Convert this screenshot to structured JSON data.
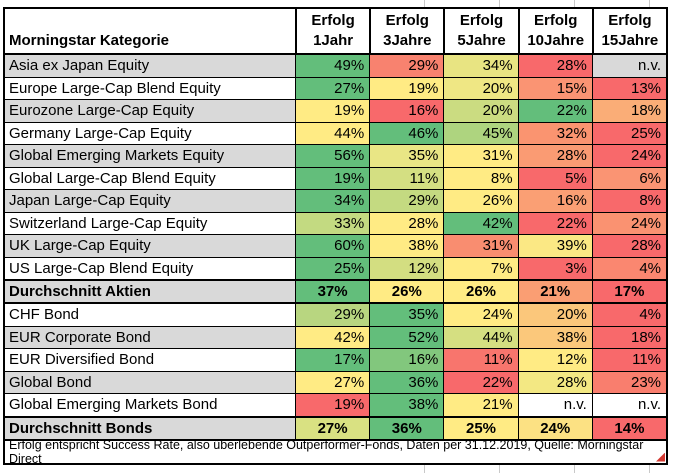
{
  "chart_data": {
    "type": "table",
    "corner_header": "Morningstar Kategorie",
    "columns": [
      {
        "line1": "Erfolg",
        "line2": "1Jahr"
      },
      {
        "line1": "Erfolg",
        "line2": "3Jahre"
      },
      {
        "line1": "Erfolg",
        "line2": "5Jahre"
      },
      {
        "line1": "Erfolg",
        "line2": "10Jahre"
      },
      {
        "line1": "Erfolg",
        "line2": "15Jahre"
      }
    ],
    "rows": [
      {
        "category": "Asia ex Japan Equity",
        "bold": false,
        "row_bg": "#D9D9D9",
        "values": [
          49,
          29,
          34,
          28,
          null
        ],
        "display": [
          "49%",
          "29%",
          "34%",
          "28%",
          "n.v."
        ],
        "cell_colors": [
          "#63BE7B",
          "#F8826F",
          "#E8E482",
          "#F8696B",
          "#D9D9D9"
        ]
      },
      {
        "category": "Europe Large-Cap Blend Equity",
        "bold": false,
        "row_bg": "#FFFFFF",
        "values": [
          27,
          19,
          20,
          15,
          13
        ],
        "display": [
          "27%",
          "19%",
          "20%",
          "15%",
          "13%"
        ],
        "cell_colors": [
          "#63BE7B",
          "#FFEB84",
          "#EFE784",
          "#FA9473",
          "#F8696B"
        ]
      },
      {
        "category": "Eurozone Large-Cap Equity",
        "bold": false,
        "row_bg": "#D9D9D9",
        "values": [
          19,
          16,
          20,
          22,
          18
        ],
        "display": [
          "19%",
          "16%",
          "20%",
          "22%",
          "18%"
        ],
        "cell_colors": [
          "#FFEB84",
          "#F8696B",
          "#CBDC81",
          "#63BE7B",
          "#FAAD77"
        ]
      },
      {
        "category": "Germany Large-Cap Equity",
        "bold": false,
        "row_bg": "#FFFFFF",
        "values": [
          44,
          46,
          45,
          32,
          25
        ],
        "display": [
          "44%",
          "46%",
          "45%",
          "32%",
          "25%"
        ],
        "cell_colors": [
          "#FFEB84",
          "#63BE7B",
          "#AED47F",
          "#FA9470",
          "#F8696B"
        ]
      },
      {
        "category": "Global Emerging Markets Equity",
        "bold": false,
        "row_bg": "#D9D9D9",
        "values": [
          56,
          35,
          31,
          28,
          24
        ],
        "display": [
          "56%",
          "35%",
          "31%",
          "28%",
          "24%"
        ],
        "cell_colors": [
          "#63BE7B",
          "#E9E685",
          "#FFEB84",
          "#FA9B73",
          "#F8696B"
        ]
      },
      {
        "category": "Global Large-Cap Blend Equity",
        "bold": false,
        "row_bg": "#FFFFFF",
        "values": [
          19,
          11,
          8,
          5,
          6
        ],
        "display": [
          "19%",
          "11%",
          "8%",
          "5%",
          "6%"
        ],
        "cell_colors": [
          "#63BE7B",
          "#D4DF82",
          "#FFEB84",
          "#F8696B",
          "#FA9473"
        ]
      },
      {
        "category": "Japan Large-Cap Equity",
        "bold": false,
        "row_bg": "#D9D9D9",
        "values": [
          34,
          29,
          26,
          16,
          8
        ],
        "display": [
          "34%",
          "29%",
          "26%",
          "16%",
          "8%"
        ],
        "cell_colors": [
          "#63BE7B",
          "#C4DA81",
          "#FFEB84",
          "#FA9F74",
          "#F8696B"
        ]
      },
      {
        "category": "Switzerland Large-Cap Equity",
        "bold": false,
        "row_bg": "#FFFFFF",
        "values": [
          33,
          28,
          42,
          22,
          24
        ],
        "display": [
          "33%",
          "28%",
          "42%",
          "22%",
          "24%"
        ],
        "cell_colors": [
          "#C3DA81",
          "#FFEB84",
          "#63BE7B",
          "#F8696B",
          "#FA9271"
        ]
      },
      {
        "category": "UK Large-Cap Equity",
        "bold": false,
        "row_bg": "#D9D9D9",
        "values": [
          60,
          38,
          31,
          39,
          28
        ],
        "display": [
          "60%",
          "38%",
          "31%",
          "39%",
          "28%"
        ],
        "cell_colors": [
          "#63BE7B",
          "#FFEB84",
          "#F98D70",
          "#FBE884",
          "#F8696B"
        ]
      },
      {
        "category": "US Large-Cap Blend Equity",
        "bold": false,
        "row_bg": "#FFFFFF",
        "values": [
          25,
          12,
          7,
          3,
          4
        ],
        "display": [
          "25%",
          "12%",
          "7%",
          "3%",
          "4%"
        ],
        "cell_colors": [
          "#63BE7B",
          "#D3DE81",
          "#FFEB84",
          "#F8696B",
          "#FA8770"
        ]
      },
      {
        "category": "Durchschnitt Aktien",
        "bold": true,
        "row_bg": "#D9D9D9",
        "values": [
          37,
          26,
          26,
          21,
          17
        ],
        "display": [
          "37%",
          "26%",
          "26%",
          "21%",
          "17%"
        ],
        "cell_colors": [
          "#63BE7B",
          "#FFEB84",
          "#FFEB84",
          "#FA9E73",
          "#F8696B"
        ]
      },
      {
        "category": "CHF Bond",
        "bold": false,
        "row_bg": "#FFFFFF",
        "values": [
          29,
          35,
          24,
          20,
          4
        ],
        "display": [
          "29%",
          "35%",
          "24%",
          "20%",
          "4%"
        ],
        "cell_colors": [
          "#B8D680",
          "#63BE7B",
          "#FFEB84",
          "#FBC77B",
          "#F8696B"
        ]
      },
      {
        "category": "EUR Corporate Bond",
        "bold": false,
        "row_bg": "#D9D9D9",
        "values": [
          42,
          52,
          44,
          38,
          18
        ],
        "display": [
          "42%",
          "52%",
          "44%",
          "38%",
          "18%"
        ],
        "cell_colors": [
          "#FFEB84",
          "#63BE7B",
          "#D5DF81",
          "#FBC87B",
          "#F8696B"
        ]
      },
      {
        "category": "EUR Diversified Bond",
        "bold": false,
        "row_bg": "#FFFFFF",
        "values": [
          17,
          16,
          11,
          12,
          11
        ],
        "display": [
          "17%",
          "16%",
          "11%",
          "12%",
          "11%"
        ],
        "cell_colors": [
          "#63BE7B",
          "#82C77D",
          "#F8756D",
          "#FFEB84",
          "#F8696B"
        ]
      },
      {
        "category": "Global Bond",
        "bold": false,
        "row_bg": "#D9D9D9",
        "values": [
          27,
          36,
          22,
          28,
          23
        ],
        "display": [
          "27%",
          "36%",
          "22%",
          "28%",
          "23%"
        ],
        "cell_colors": [
          "#FFEB84",
          "#63BE7B",
          "#F8696B",
          "#F3E883",
          "#F97E6E"
        ]
      },
      {
        "category": "Global Emerging Markets Bond",
        "bold": false,
        "row_bg": "#FFFFFF",
        "values": [
          19,
          38,
          21,
          null,
          null
        ],
        "display": [
          "19%",
          "38%",
          "21%",
          "n.v.",
          "n.v."
        ],
        "cell_colors": [
          "#F8696B",
          "#63BE7B",
          "#FFEB84",
          "#FFFFFF",
          "#FFFFFF"
        ]
      },
      {
        "category": "Durchschnitt Bonds",
        "bold": true,
        "row_bg": "#D9D9D9",
        "values": [
          27,
          36,
          25,
          24,
          14
        ],
        "display": [
          "27%",
          "36%",
          "25%",
          "24%",
          "14%"
        ],
        "cell_colors": [
          "#D9E182",
          "#63BE7B",
          "#FFEB84",
          "#FCE183",
          "#F8696B"
        ]
      }
    ],
    "footnote": "Erfolg entspricht Success Rate, also überlebende Outperformer-Fonds, Daten per 31.12.2019, Quelle: Morningstar Direct",
    "color_scale": {
      "min": "#F8696B",
      "mid": "#FFEB84",
      "max": "#63BE7B"
    },
    "na_text": "n.v."
  },
  "colors": {
    "band_gray": "#D9D9D9",
    "band_white": "#FFFFFF",
    "border": "#000000",
    "corner_marker": "#D43A32",
    "sheet_gridline": "#C9C9C9"
  }
}
